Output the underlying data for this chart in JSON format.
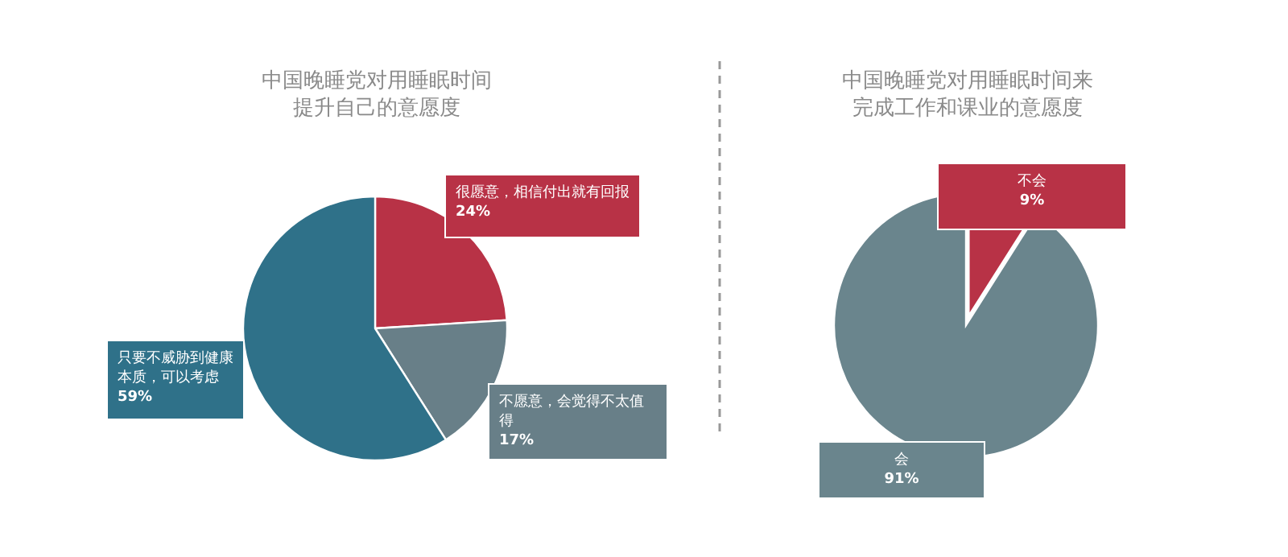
{
  "chart_data": [
    {
      "type": "pie",
      "title": "中国晚睡党对用睡眠时间提升自己的意愿度",
      "categories": [
        "很愿意，相信付出就有回报",
        "不愿意，会觉得不太值得",
        "只要不威胁到健康本质，可以考虑"
      ],
      "values": [
        24,
        17,
        59
      ],
      "colors": [
        "#b83246",
        "#687f88",
        "#2f7189"
      ],
      "value_labels": [
        "24%",
        "17%",
        "59%"
      ]
    },
    {
      "type": "pie",
      "title": "中国晚睡党对用睡眠时间来完成工作和课业的意愿度",
      "categories": [
        "不会",
        "会"
      ],
      "values": [
        9,
        91
      ],
      "colors": [
        "#b83246",
        "#6a858d"
      ],
      "value_labels": [
        "9%",
        "91%"
      ]
    }
  ]
}
